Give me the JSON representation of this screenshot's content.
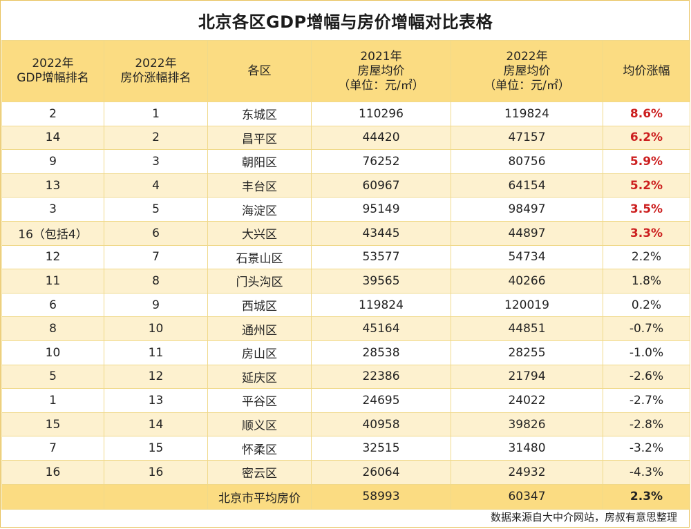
{
  "title": "北京各区GDP增幅与房价增幅对比表格",
  "headers": {
    "col1": [
      "2022年",
      "GDP增幅排名"
    ],
    "col2": [
      "2022年",
      "房价涨幅排名"
    ],
    "col3": [
      "各区"
    ],
    "col4": [
      "2021年",
      "房屋均价",
      "（单位：元/㎡）"
    ],
    "col5": [
      "2022年",
      "房屋均价",
      "（单位：元/㎡）"
    ],
    "col6": [
      "均价涨幅"
    ]
  },
  "rows": [
    {
      "gdp_rank": "2",
      "price_rank": "1",
      "district": "东城区",
      "price_2021": "110296",
      "price_2022": "119824",
      "change": "8.6%",
      "highlight": true
    },
    {
      "gdp_rank": "14",
      "price_rank": "2",
      "district": "昌平区",
      "price_2021": "44420",
      "price_2022": "47157",
      "change": "6.2%",
      "highlight": true
    },
    {
      "gdp_rank": "9",
      "price_rank": "3",
      "district": "朝阳区",
      "price_2021": "76252",
      "price_2022": "80756",
      "change": "5.9%",
      "highlight": true
    },
    {
      "gdp_rank": "13",
      "price_rank": "4",
      "district": "丰台区",
      "price_2021": "60967",
      "price_2022": "64154",
      "change": "5.2%",
      "highlight": true
    },
    {
      "gdp_rank": "3",
      "price_rank": "5",
      "district": "海淀区",
      "price_2021": "95149",
      "price_2022": "98497",
      "change": "3.5%",
      "highlight": true
    },
    {
      "gdp_rank": "16（包括4）",
      "price_rank": "6",
      "district": "大兴区",
      "price_2021": "43445",
      "price_2022": "44897",
      "change": "3.3%",
      "highlight": true
    },
    {
      "gdp_rank": "12",
      "price_rank": "7",
      "district": "石景山区",
      "price_2021": "53577",
      "price_2022": "54734",
      "change": "2.2%",
      "highlight": false
    },
    {
      "gdp_rank": "11",
      "price_rank": "8",
      "district": "门头沟区",
      "price_2021": "39565",
      "price_2022": "40266",
      "change": "1.8%",
      "highlight": false
    },
    {
      "gdp_rank": "6",
      "price_rank": "9",
      "district": "西城区",
      "price_2021": "119824",
      "price_2022": "120019",
      "change": "0.2%",
      "highlight": false
    },
    {
      "gdp_rank": "8",
      "price_rank": "10",
      "district": "通州区",
      "price_2021": "45164",
      "price_2022": "44851",
      "change": "-0.7%",
      "highlight": false
    },
    {
      "gdp_rank": "10",
      "price_rank": "11",
      "district": "房山区",
      "price_2021": "28538",
      "price_2022": "28255",
      "change": "-1.0%",
      "highlight": false
    },
    {
      "gdp_rank": "5",
      "price_rank": "12",
      "district": "延庆区",
      "price_2021": "22386",
      "price_2022": "21794",
      "change": "-2.6%",
      "highlight": false
    },
    {
      "gdp_rank": "1",
      "price_rank": "13",
      "district": "平谷区",
      "price_2021": "24695",
      "price_2022": "24022",
      "change": "-2.7%",
      "highlight": false
    },
    {
      "gdp_rank": "15",
      "price_rank": "14",
      "district": "顺义区",
      "price_2021": "40958",
      "price_2022": "39826",
      "change": "-2.8%",
      "highlight": false
    },
    {
      "gdp_rank": "7",
      "price_rank": "15",
      "district": "怀柔区",
      "price_2021": "32515",
      "price_2022": "31480",
      "change": "-3.2%",
      "highlight": false
    },
    {
      "gdp_rank": "16",
      "price_rank": "16",
      "district": "密云区",
      "price_2021": "26064",
      "price_2022": "24932",
      "change": "-4.3%",
      "highlight": false
    }
  ],
  "total": {
    "label": "北京市平均房价",
    "price_2021": "58993",
    "price_2022": "60347",
    "change": "2.3%"
  },
  "footer": "数据来源自大中介网站，房叔有意思整理",
  "colors": {
    "header_bg": "#fbdc82",
    "stripe_bg": "#fdf1cf",
    "highlight_text": "#cc1f1f"
  }
}
